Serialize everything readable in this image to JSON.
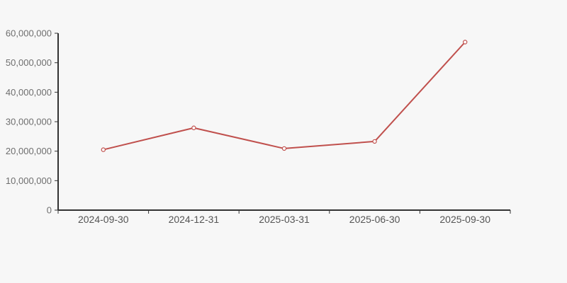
{
  "page": {
    "background_color": "#f7f7f7"
  },
  "chart_data": {
    "type": "line",
    "title": "",
    "xlabel": "",
    "ylabel": "",
    "categories": [
      "2024-09-30",
      "2024-12-31",
      "2025-03-31",
      "2025-06-30",
      "2025-09-30"
    ],
    "series": [
      {
        "name": "",
        "color": "#c0504d",
        "marker": "hollow-circle",
        "marker_fill": "#ffffff",
        "values": [
          20500000,
          27900000,
          20900000,
          23300000,
          57000000
        ]
      }
    ],
    "ylim": [
      0,
      60000000
    ],
    "y_tick_step": 10000000,
    "y_ticks": [
      0,
      10000000,
      20000000,
      30000000,
      40000000,
      50000000,
      60000000
    ],
    "y_tick_labels": [
      "0",
      "10,000,000",
      "20,000,000",
      "30,000,000",
      "40,000,000",
      "50,000,000",
      "60,000,000"
    ],
    "grid": false,
    "legend_position": "none",
    "axis_color": "#333333",
    "y_label_color": "#6e6e6e",
    "x_label_color": "#555555"
  }
}
